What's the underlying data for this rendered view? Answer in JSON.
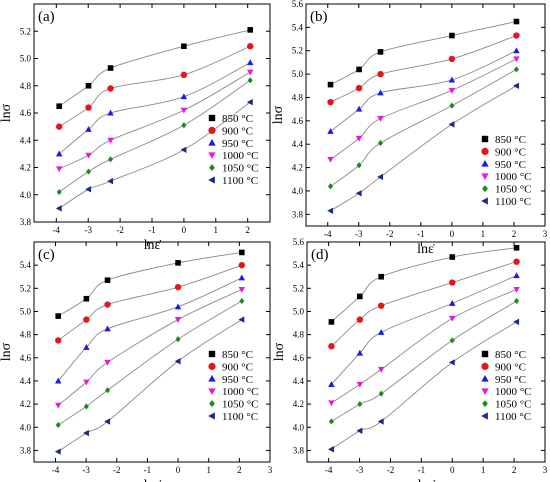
{
  "figure": {
    "series_labels": [
      "850 °C",
      "900 °C",
      "950 °C",
      "1000 °C",
      "1050 °C",
      "1100 °C"
    ],
    "series_markers": [
      "square",
      "circle",
      "triangle-up",
      "triangle-down",
      "diamond",
      "triangle-left"
    ],
    "series_colors": [
      "#000000",
      "#e8141b",
      "#1a1af0",
      "#e81ad8",
      "#1a8a1a",
      "#1a2a8a"
    ],
    "curve_color": "#8a8a8a"
  },
  "chart_data": [
    {
      "type": "scatter",
      "panel_label": "(a)",
      "xlabel": "lnε̇",
      "ylabel": "lnσ",
      "xlim": [
        -4.7,
        2.7
      ],
      "ylim": [
        3.8,
        5.4
      ],
      "xticks": [
        -4,
        -3,
        -2,
        -1,
        0,
        1,
        2
      ],
      "yticks": [
        3.8,
        4.0,
        4.2,
        4.4,
        4.6,
        4.8,
        5.0,
        5.2
      ],
      "x": [
        -3.91,
        -2.99,
        -2.3,
        0,
        2.08
      ],
      "series": [
        {
          "name": "850 °C",
          "values": [
            4.65,
            4.8,
            4.93,
            5.09,
            5.21
          ]
        },
        {
          "name": "900 °C",
          "values": [
            4.5,
            4.64,
            4.78,
            4.88,
            5.09
          ]
        },
        {
          "name": "950 °C",
          "values": [
            4.3,
            4.48,
            4.6,
            4.72,
            4.97
          ]
        },
        {
          "name": "1000 °C",
          "values": [
            4.19,
            4.29,
            4.4,
            4.62,
            4.9
          ]
        },
        {
          "name": "1050 °C",
          "values": [
            4.02,
            4.17,
            4.26,
            4.51,
            4.84
          ]
        },
        {
          "name": "1100 °C",
          "values": [
            3.9,
            4.04,
            4.1,
            4.33,
            4.68
          ]
        }
      ],
      "legend_position": "bottom-right",
      "grid": false
    },
    {
      "type": "scatter",
      "panel_label": "(b)",
      "xlabel": "lnε̇",
      "ylabel": "lnσ",
      "xlim": [
        -4.7,
        3.0
      ],
      "ylim": [
        3.7,
        5.6
      ],
      "xticks": [
        -4,
        -3,
        -2,
        -1,
        0,
        1,
        2,
        3
      ],
      "yticks": [
        3.8,
        4.0,
        4.2,
        4.4,
        4.6,
        4.8,
        5.0,
        5.2,
        5.4,
        5.6
      ],
      "x": [
        -3.91,
        -2.99,
        -2.3,
        0,
        2.08
      ],
      "series": [
        {
          "name": "850 °C",
          "values": [
            4.91,
            5.04,
            5.19,
            5.33,
            5.45
          ]
        },
        {
          "name": "900 °C",
          "values": [
            4.76,
            4.88,
            5.0,
            5.13,
            5.33
          ]
        },
        {
          "name": "950 °C",
          "values": [
            4.51,
            4.7,
            4.84,
            4.95,
            5.2
          ]
        },
        {
          "name": "1000 °C",
          "values": [
            4.27,
            4.45,
            4.62,
            4.86,
            5.13
          ]
        },
        {
          "name": "1050 °C",
          "values": [
            4.04,
            4.22,
            4.41,
            4.73,
            5.04
          ]
        },
        {
          "name": "1100 °C",
          "values": [
            3.83,
            3.98,
            4.12,
            4.57,
            4.9
          ]
        }
      ],
      "legend_position": "bottom-right",
      "grid": false
    },
    {
      "type": "scatter",
      "panel_label": "(c)",
      "xlabel": "lnε̇",
      "ylabel": "lnσ",
      "xlim": [
        -4.7,
        3.0
      ],
      "ylim": [
        3.7,
        5.6
      ],
      "xticks": [
        -4,
        -3,
        -2,
        -1,
        0,
        1,
        2,
        3
      ],
      "yticks": [
        3.8,
        4.0,
        4.2,
        4.4,
        4.6,
        4.8,
        5.0,
        5.2,
        5.4
      ],
      "x": [
        -3.91,
        -2.99,
        -2.3,
        0,
        2.08
      ],
      "series": [
        {
          "name": "850 °C",
          "values": [
            4.96,
            5.11,
            5.27,
            5.42,
            5.51
          ]
        },
        {
          "name": "900 °C",
          "values": [
            4.75,
            4.93,
            5.06,
            5.21,
            5.4
          ]
        },
        {
          "name": "950 °C",
          "values": [
            4.4,
            4.69,
            4.85,
            5.04,
            5.29
          ]
        },
        {
          "name": "1000 °C",
          "values": [
            4.19,
            4.39,
            4.56,
            4.93,
            5.19
          ]
        },
        {
          "name": "1050 °C",
          "values": [
            4.02,
            4.18,
            4.32,
            4.76,
            5.09
          ]
        },
        {
          "name": "1100 °C",
          "values": [
            3.79,
            3.95,
            4.05,
            4.57,
            4.93
          ]
        }
      ],
      "legend_position": "bottom-right",
      "grid": false
    },
    {
      "type": "scatter",
      "panel_label": "(d)",
      "xlabel": "lnε̇",
      "ylabel": "lnσ",
      "xlim": [
        -4.7,
        3.0
      ],
      "ylim": [
        3.7,
        5.6
      ],
      "xticks": [
        -4,
        -3,
        -2,
        -1,
        0,
        1,
        2,
        3
      ],
      "yticks": [
        3.8,
        4.0,
        4.2,
        4.4,
        4.6,
        4.8,
        5.0,
        5.2,
        5.4,
        5.6
      ],
      "x": [
        -3.91,
        -2.99,
        -2.3,
        0,
        2.08
      ],
      "series": [
        {
          "name": "850 °C",
          "values": [
            4.91,
            5.13,
            5.3,
            5.47,
            5.55
          ]
        },
        {
          "name": "900 °C",
          "values": [
            4.7,
            4.93,
            5.05,
            5.25,
            5.43
          ]
        },
        {
          "name": "950 °C",
          "values": [
            4.37,
            4.64,
            4.82,
            5.07,
            5.31
          ]
        },
        {
          "name": "1000 °C",
          "values": [
            4.21,
            4.37,
            4.5,
            4.94,
            5.19
          ]
        },
        {
          "name": "1050 °C",
          "values": [
            4.05,
            4.2,
            4.29,
            4.75,
            5.09
          ]
        },
        {
          "name": "1100 °C",
          "values": [
            3.81,
            3.97,
            4.05,
            4.56,
            4.91
          ]
        }
      ],
      "legend_position": "bottom-right",
      "grid": false
    }
  ]
}
